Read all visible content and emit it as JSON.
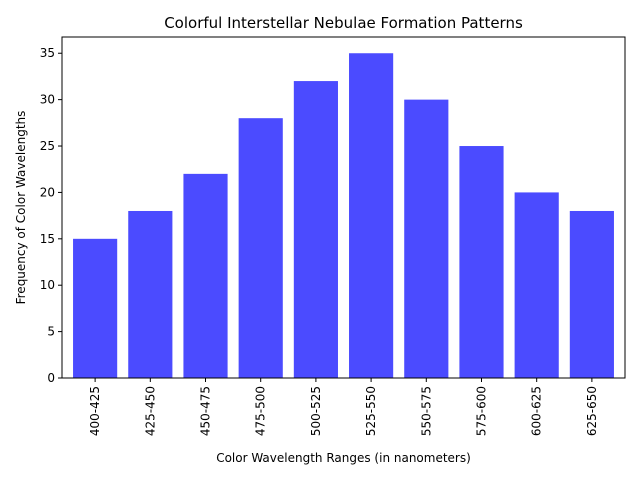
{
  "chart_data": {
    "type": "bar",
    "title": "Colorful Interstellar Nebulae Formation Patterns",
    "xlabel": "Color Wavelength Ranges (in nanometers)",
    "ylabel": "Frequency of Color Wavelengths",
    "categories": [
      "400-425",
      "425-450",
      "450-475",
      "475-500",
      "500-525",
      "525-550",
      "550-575",
      "575-600",
      "600-625",
      "625-650"
    ],
    "values": [
      15,
      18,
      22,
      28,
      32,
      35,
      30,
      25,
      20,
      18
    ],
    "ylim": [
      0,
      36.75
    ],
    "yticks": [
      0,
      5,
      10,
      15,
      20,
      25,
      30,
      35
    ],
    "bar_color": "#4b4bff",
    "grid": false,
    "legend": "none",
    "xtick_rotation": "vertical"
  }
}
